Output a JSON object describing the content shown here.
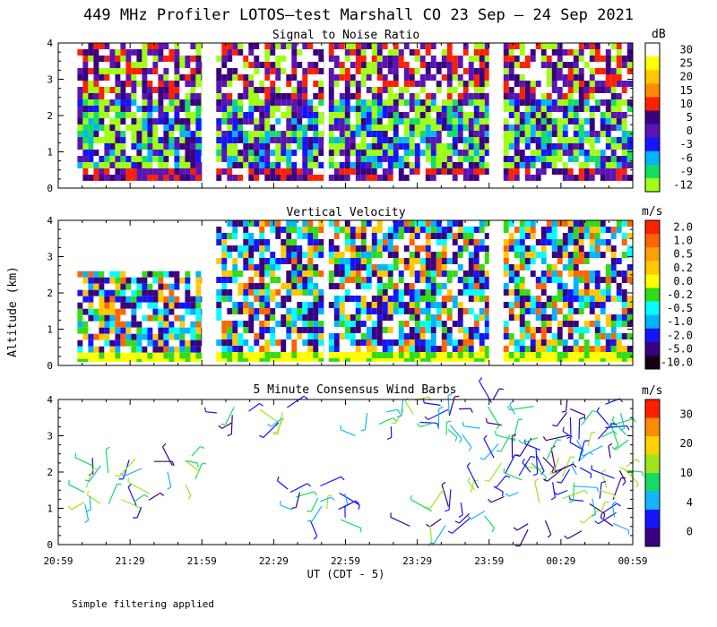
{
  "title": "449 MHz Profiler LOTOS—test Marshall CO 23 Sep — 24 Sep 2021",
  "footer_note": "Simple filtering applied",
  "axes": {
    "ylabel": "Altitude (km)",
    "xlabel": "UT  (CDT - 5)",
    "y_ticks": [
      "0",
      "1",
      "2",
      "3",
      "4"
    ],
    "x_ticks": [
      "20:59",
      "21:29",
      "21:59",
      "22:29",
      "22:59",
      "23:29",
      "23:59",
      "00:29",
      "00:59"
    ]
  },
  "chart_data": [
    {
      "type": "heatmap",
      "title": "Signal to Noise Ratio",
      "x_range_ut": [
        "20:59",
        "00:59"
      ],
      "ylim": [
        0,
        4
      ],
      "color_unit": "dB",
      "colorbar_labels": [
        "30",
        "25",
        "20",
        "15",
        "10",
        "5",
        "0",
        "-3",
        "-6",
        "-9",
        "-12"
      ],
      "colorbar_colors": [
        "#ffffff",
        "#ffff00",
        "#ffc800",
        "#ff8c00",
        "#ff2000",
        "#3a0080",
        "#5a14b4",
        "#1414ff",
        "#00b4ff",
        "#14dc64",
        "#a0ff14"
      ],
      "data_blocks": [
        {
          "start": "21:07",
          "end": "21:59",
          "y": [
            0.2,
            4.0
          ]
        },
        {
          "start": "22:05",
          "end": "22:50",
          "y": [
            0.2,
            4.0
          ]
        },
        {
          "start": "22:52",
          "end": "23:59",
          "y": [
            0.2,
            4.0
          ]
        },
        {
          "start": "00:05",
          "end": "00:59",
          "y": [
            0.2,
            4.0
          ]
        }
      ]
    },
    {
      "type": "heatmap",
      "title": "Vertical Velocity",
      "x_range_ut": [
        "20:59",
        "00:59"
      ],
      "ylim": [
        0,
        4
      ],
      "color_unit": "m/s",
      "colorbar_labels": [
        "2.0",
        "1.0",
        "0.5",
        "0.2",
        "0.0",
        "-0.2",
        "-0.5",
        "-1.0",
        "-2.0",
        "-5.0",
        "-10.0"
      ],
      "colorbar_colors": [
        "#ff2000",
        "#ff6400",
        "#ffa000",
        "#ffc800",
        "#ffff00",
        "#32dc14",
        "#00ffff",
        "#00b4ff",
        "#1414ff",
        "#3a0080",
        "#140014"
      ],
      "data_blocks": [
        {
          "start": "21:07",
          "end": "21:59",
          "y": [
            0.1,
            2.6
          ]
        },
        {
          "start": "22:05",
          "end": "22:50",
          "y": [
            0.1,
            4.0
          ]
        },
        {
          "start": "22:52",
          "end": "23:59",
          "y": [
            0.1,
            4.0
          ]
        },
        {
          "start": "00:05",
          "end": "00:59",
          "y": [
            0.1,
            4.0
          ]
        }
      ]
    },
    {
      "type": "scatter",
      "title": "5 Minute Consensus Wind Barbs",
      "x_range_ut": [
        "20:59",
        "00:59"
      ],
      "ylim": [
        0,
        4
      ],
      "color_unit": "m/s",
      "colorbar_labels": [
        "30",
        "20",
        "10",
        "4",
        "0"
      ],
      "colorbar_colors": [
        "#ff1e00",
        "#ff8c00",
        "#ffd200",
        "#a0e61e",
        "#14dc64",
        "#14b4ff",
        "#1414ff",
        "#3a0080"
      ],
      "clusters": [
        {
          "start": "21:09",
          "end": "21:40",
          "y": [
            0.9,
            2.5
          ]
        },
        {
          "start": "21:40",
          "end": "22:00",
          "y": [
            1.6,
            2.5
          ]
        },
        {
          "start": "22:03",
          "end": "22:42",
          "y": [
            3.3,
            4.0
          ]
        },
        {
          "start": "22:27",
          "end": "23:00",
          "y": [
            0.5,
            1.7
          ]
        },
        {
          "start": "23:03",
          "end": "23:59",
          "y": [
            3.0,
            4.0
          ]
        },
        {
          "start": "23:25",
          "end": "23:59",
          "y": [
            0.5,
            1.6
          ]
        },
        {
          "start": "23:59",
          "end": "00:59",
          "y": [
            0.3,
            4.0
          ]
        }
      ]
    }
  ]
}
